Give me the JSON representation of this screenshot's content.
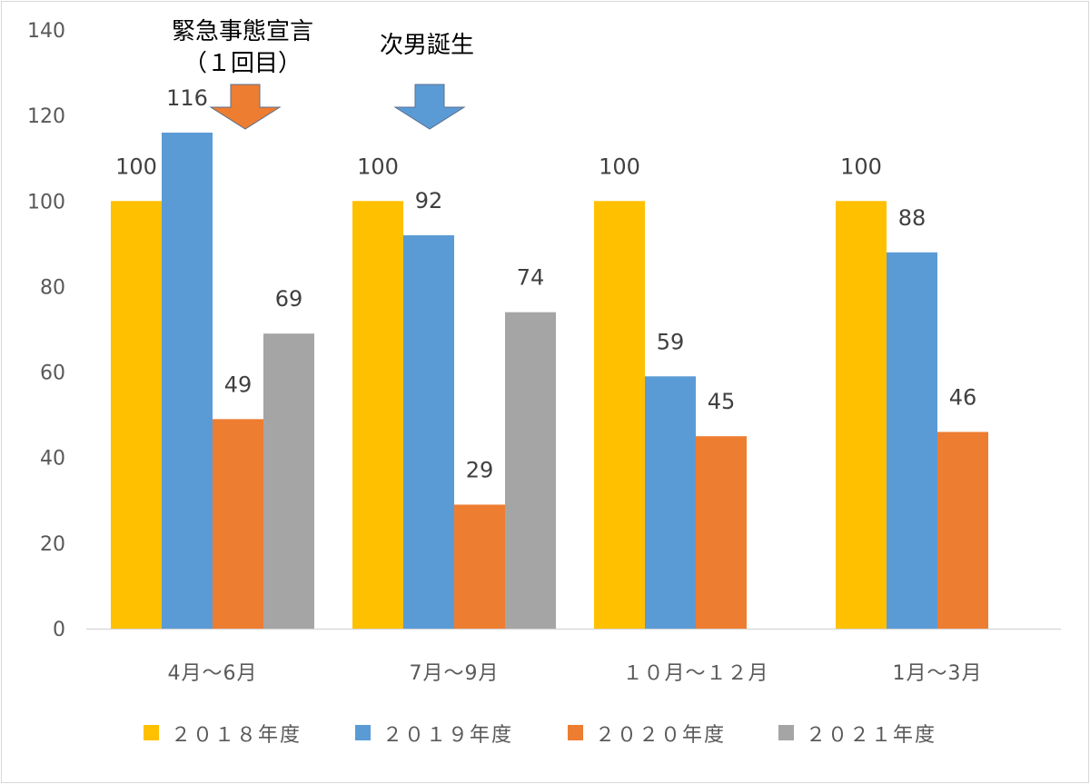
{
  "chart_data": {
    "type": "bar",
    "categories": [
      "4月～6月",
      "7月～9月",
      "１０月～１２月",
      "1月～3月"
    ],
    "series": [
      {
        "name": "２０１８年度",
        "values": [
          100,
          100,
          100,
          100
        ],
        "color": "#FFC000"
      },
      {
        "name": "２０１９年度",
        "values": [
          116,
          92,
          59,
          88
        ],
        "color": "#5B9BD5"
      },
      {
        "name": "２０２０年度",
        "values": [
          49,
          29,
          45,
          46
        ],
        "color": "#ED7D31"
      },
      {
        "name": "２０２１年度",
        "values": [
          69,
          74,
          null,
          null
        ],
        "color": "#A5A5A5"
      }
    ],
    "ylim": [
      0,
      140
    ],
    "yticks": [
      0,
      20,
      40,
      60,
      80,
      100,
      120,
      140
    ],
    "grid": false,
    "legend_position": "bottom",
    "annotations": [
      {
        "lines": [
          "緊急事態宣言",
          "（１回目）"
        ],
        "category": "4月～6月",
        "arrow_color": "#ED7D31"
      },
      {
        "lines": [
          "次男誕生"
        ],
        "category": "7月～9月",
        "arrow_color": "#5B9BD5"
      }
    ]
  }
}
